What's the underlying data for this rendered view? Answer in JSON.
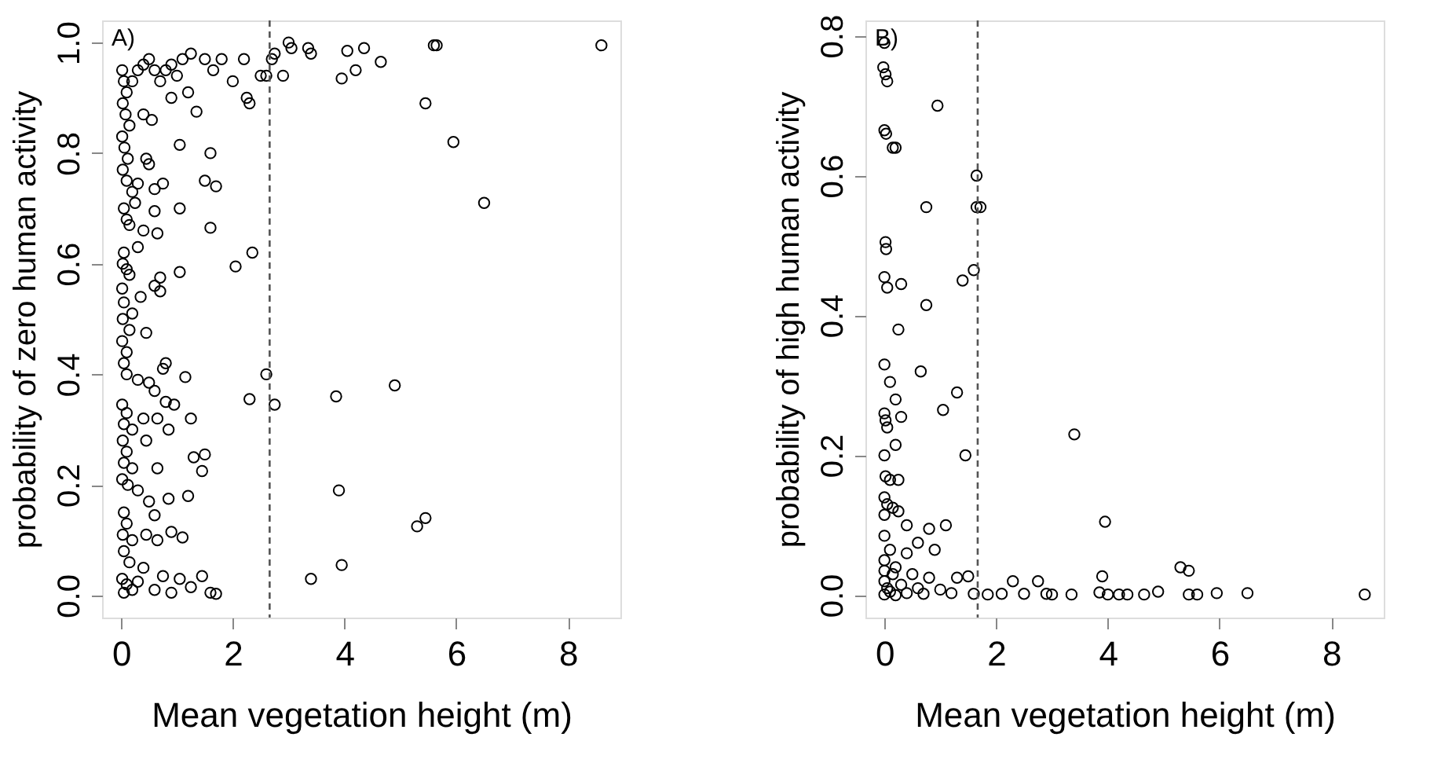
{
  "chart_data": [
    {
      "type": "scatter",
      "xlabel": "Mean vegetation height (m)",
      "ylabel": "probability of zero human activity",
      "annotations": [
        "A)"
      ],
      "marker": "circle",
      "color": "#000000",
      "xlim": [
        -0.34,
        8.94
      ],
      "ylim": [
        -0.04,
        1.04
      ],
      "xticks": [
        0,
        2,
        4,
        6,
        8
      ],
      "yticks": [
        {
          "value": 0,
          "label": "0.0"
        },
        {
          "value": 0.2,
          "label": "0.2"
        },
        {
          "value": 0.4,
          "label": "0.4"
        },
        {
          "value": 0.6,
          "label": "0.6"
        },
        {
          "value": 0.8,
          "label": "0.8"
        },
        {
          "value": 1,
          "label": "1.0"
        }
      ],
      "ref_lines": [
        {
          "axis": "x",
          "value": 2.66,
          "line_style": "dashed",
          "color": "#555555"
        }
      ],
      "x": [
        0.02,
        0.05,
        0.1,
        0.03,
        0.08,
        0.15,
        0.02,
        0.06,
        0.12,
        0.03,
        0.1,
        0.2,
        0.3,
        0.4,
        0.5,
        0.6,
        0.7,
        0.8,
        0.9,
        1.0,
        1.1,
        1.25,
        1.5,
        1.65,
        1.8,
        2.0,
        2.2,
        2.25,
        2.3,
        2.5,
        2.6,
        2.7,
        2.75,
        2.9,
        3.0,
        3.05,
        3.35,
        3.4,
        3.95,
        4.05,
        4.2,
        4.35,
        4.65,
        5.45,
        5.6,
        5.65,
        5.95,
        6.5,
        8.6,
        0.4,
        0.55,
        0.9,
        1.2,
        1.35,
        1.05,
        1.6,
        0.45,
        0.5,
        0.3,
        0.6,
        0.75,
        1.5,
        1.7,
        0.2,
        0.25,
        0.6,
        1.05,
        1.6,
        0.05,
        0.1,
        0.15,
        0.4,
        0.65,
        0.3,
        0.05,
        0.03,
        0.1,
        0.15,
        2.05,
        2.35,
        1.05,
        0.7,
        0.6,
        0.7,
        0.02,
        0.05,
        0.35,
        0.2,
        0.03,
        0.15,
        0.45,
        0.02,
        0.1,
        0.05,
        0.8,
        0.75,
        0.1,
        0.3,
        1.15,
        2.6,
        0.5,
        0.6,
        0.8,
        0.95,
        2.3,
        2.75,
        3.85,
        4.9,
        0.02,
        0.1,
        0.05,
        0.2,
        0.4,
        0.65,
        0.85,
        1.25,
        0.03,
        0.1,
        0.45,
        0.05,
        0.2,
        0.65,
        1.3,
        1.5,
        1.45,
        0.02,
        0.12,
        0.3,
        3.9,
        0.85,
        1.2,
        0.5,
        0.6,
        0.05,
        0.1,
        0.03,
        0.2,
        0.45,
        0.65,
        0.9,
        1.1,
        5.3,
        5.45,
        0.05,
        0.15,
        0.4,
        3.95,
        3.4,
        0.02,
        0.1,
        0.2,
        0.05,
        0.3,
        0.75,
        1.05,
        1.25,
        1.45,
        0.6,
        0.9,
        1.6,
        1.7
      ],
      "values": [
        0.95,
        0.93,
        0.91,
        0.89,
        0.87,
        0.85,
        0.83,
        0.81,
        0.79,
        0.77,
        0.75,
        0.93,
        0.95,
        0.96,
        0.97,
        0.95,
        0.93,
        0.95,
        0.96,
        0.94,
        0.97,
        0.98,
        0.97,
        0.95,
        0.97,
        0.93,
        0.97,
        0.9,
        0.89,
        0.94,
        0.94,
        0.97,
        0.98,
        0.94,
        1.0,
        0.99,
        0.99,
        0.98,
        0.935,
        0.985,
        0.95,
        0.99,
        0.965,
        0.89,
        0.995,
        0.995,
        0.82,
        0.71,
        0.995,
        0.87,
        0.86,
        0.9,
        0.91,
        0.875,
        0.815,
        0.8,
        0.79,
        0.78,
        0.745,
        0.735,
        0.745,
        0.75,
        0.74,
        0.73,
        0.71,
        0.695,
        0.7,
        0.665,
        0.7,
        0.68,
        0.67,
        0.66,
        0.655,
        0.63,
        0.62,
        0.6,
        0.59,
        0.58,
        0.595,
        0.62,
        0.585,
        0.575,
        0.56,
        0.55,
        0.555,
        0.53,
        0.54,
        0.51,
        0.5,
        0.48,
        0.475,
        0.46,
        0.44,
        0.42,
        0.42,
        0.41,
        0.4,
        0.39,
        0.395,
        0.4,
        0.385,
        0.37,
        0.35,
        0.345,
        0.355,
        0.345,
        0.36,
        0.38,
        0.345,
        0.33,
        0.31,
        0.3,
        0.32,
        0.32,
        0.3,
        0.32,
        0.28,
        0.26,
        0.28,
        0.24,
        0.23,
        0.23,
        0.25,
        0.255,
        0.225,
        0.21,
        0.2,
        0.19,
        0.19,
        0.175,
        0.18,
        0.17,
        0.145,
        0.15,
        0.13,
        0.11,
        0.1,
        0.11,
        0.1,
        0.115,
        0.105,
        0.125,
        0.14,
        0.08,
        0.06,
        0.05,
        0.055,
        0.03,
        0.03,
        0.02,
        0.01,
        0.005,
        0.025,
        0.035,
        0.03,
        0.015,
        0.035,
        0.01,
        0.005,
        0.005,
        0.003
      ]
    },
    {
      "type": "scatter",
      "xlabel": "Mean vegetation height (m)",
      "ylabel": "probability of high human activity",
      "annotations": [
        "B)"
      ],
      "marker": "circle",
      "color": "#000000",
      "xlim": [
        -0.34,
        8.94
      ],
      "ylim": [
        -0.032,
        0.822
      ],
      "xticks": [
        0,
        2,
        4,
        6,
        8
      ],
      "yticks": [
        {
          "value": 0,
          "label": "0.0"
        },
        {
          "value": 0.2,
          "label": "0.2"
        },
        {
          "value": 0.4,
          "label": "0.4"
        },
        {
          "value": 0.6,
          "label": "0.6"
        },
        {
          "value": 0.8,
          "label": "0.8"
        }
      ],
      "ref_lines": [
        {
          "axis": "x",
          "value": 1.67,
          "line_style": "dashed",
          "color": "#555555"
        }
      ],
      "x": [
        0.0,
        -0.02,
        0.02,
        0.05,
        0.95,
        0.0,
        0.03,
        0.15,
        0.2,
        1.65,
        0.75,
        1.65,
        1.72,
        0.02,
        0.03,
        1.6,
        0.0,
        0.05,
        0.3,
        1.4,
        0.75,
        0.25,
        0.0,
        0.65,
        0.1,
        0.2,
        1.3,
        1.05,
        3.4,
        0.0,
        0.02,
        0.05,
        0.3,
        0.2,
        0.0,
        1.45,
        0.02,
        0.1,
        0.25,
        0.0,
        0.05,
        0.15,
        0.25,
        0.0,
        0.4,
        0.8,
        1.1,
        3.95,
        0.0,
        0.6,
        0.9,
        0.1,
        0.4,
        0.0,
        0.2,
        5.3,
        5.45,
        0.5,
        0.8,
        1.3,
        1.5,
        2.3,
        2.75,
        3.9,
        0.0,
        0.3,
        0.6,
        1.0,
        0.1,
        0.4,
        0.7,
        1.2,
        1.6,
        1.85,
        2.1,
        2.5,
        2.9,
        3.0,
        3.35,
        3.85,
        4.0,
        4.2,
        4.35,
        4.65,
        4.9,
        5.45,
        5.6,
        5.95,
        6.5,
        8.6,
        0.0,
        0.2,
        0.05,
        0.15,
        0.0
      ],
      "values": [
        0.79,
        0.755,
        0.745,
        0.735,
        0.7,
        0.665,
        0.66,
        0.64,
        0.64,
        0.6,
        0.555,
        0.555,
        0.555,
        0.505,
        0.495,
        0.465,
        0.455,
        0.44,
        0.445,
        0.45,
        0.415,
        0.38,
        0.33,
        0.32,
        0.305,
        0.28,
        0.29,
        0.265,
        0.23,
        0.26,
        0.25,
        0.24,
        0.255,
        0.215,
        0.2,
        0.2,
        0.17,
        0.165,
        0.165,
        0.14,
        0.13,
        0.125,
        0.12,
        0.115,
        0.1,
        0.095,
        0.1,
        0.105,
        0.085,
        0.075,
        0.065,
        0.065,
        0.06,
        0.05,
        0.04,
        0.04,
        0.035,
        0.03,
        0.025,
        0.025,
        0.027,
        0.02,
        0.02,
        0.027,
        0.02,
        0.015,
        0.01,
        0.008,
        0.005,
        0.003,
        0.002,
        0.003,
        0.002,
        0.001,
        0.002,
        0.002,
        0.002,
        0.001,
        0.001,
        0.004,
        0.001,
        0.001,
        0.001,
        0.001,
        0.005,
        0.001,
        0.001,
        0.003,
        0.003,
        0.001,
        0.001,
        0.0,
        0.01,
        0.03,
        0.035
      ]
    }
  ]
}
